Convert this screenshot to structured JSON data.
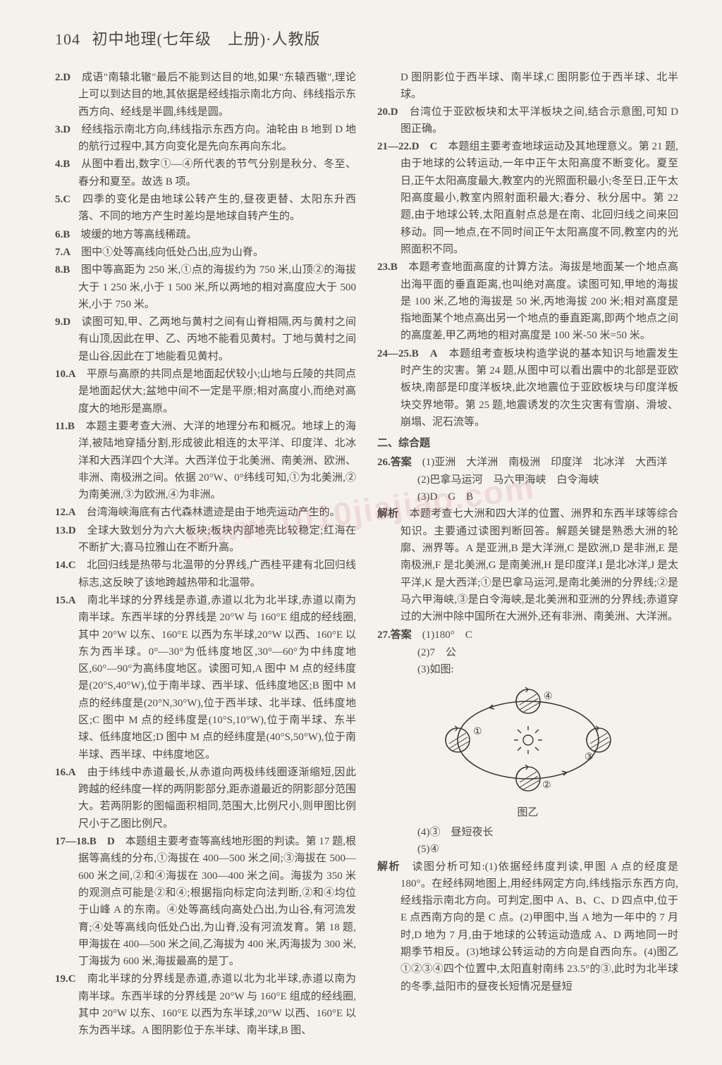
{
  "page_number": "104",
  "header_title": "初中地理(七年级　上册)·人教版",
  "watermark_text": "www.1010jiajiao.com",
  "left_column": {
    "items": [
      {
        "num": "2.D",
        "text": "成语\"南辕北辙\"最后不能到达目的地,如果\"东辕西辙\",理论上可以到达目的地,其依据是经线指示南北方向、纬线指示东西方向、经线是半圆,纬线是圆。"
      },
      {
        "num": "3.D",
        "text": "经线指示南北方向,纬线指示东西方向。油轮由 B 地到 D 地的航行过程中,其方向变化是先向东再向东北。"
      },
      {
        "num": "4.B",
        "text": "从图中看出,数字①—④所代表的节气分别是秋分、冬至、春分和夏至。故选 B 项。"
      },
      {
        "num": "5.C",
        "text": "四季的变化是由地球公转产生的,昼夜更替、太阳东升西落、不同的地方产生时差均是地球自转产生的。"
      },
      {
        "num": "6.B",
        "text": "坡缓的地方等高线稀疏。"
      },
      {
        "num": "7.A",
        "text": "图中①处等高线向低处凸出,应为山脊。"
      },
      {
        "num": "8.B",
        "text": "图中等高距为 250 米,①点的海拔约为 750 米,山顶②的海拔大于 1 250 米,小于 1 500 米,所以两地的相对高度应大于 500 米,小于 750 米。"
      },
      {
        "num": "9.D",
        "text": "读图可知,甲、乙两地与黄村之间有山脊相隔,丙与黄村之间有山顶,因此在甲、乙、丙地不能看见黄村。丁地与黄村之间是山谷,因此在丁地能看见黄村。"
      },
      {
        "num": "10.A",
        "text": "平原与高原的共同点是地面起伏较小;山地与丘陵的共同点是地面起伏大;盆地中间不一定是平原;相对高度小,而绝对高度大的地形是高原。"
      },
      {
        "num": "11.B",
        "text": "本题主要考查大洲、大洋的地理分布和概况。地球上的海洋,被陆地穿插分割,形成彼此相连的太平洋、印度洋、北冰洋和大西洋四个大洋。大西洋位于北美洲、南美洲、欧洲、非洲、南极洲之间。依据 20°W、0°纬线可知,①为北美洲,②为南美洲,③为欧洲,④为非洲。"
      },
      {
        "num": "12.A",
        "text": "台湾海峡海底有古代森林遗迹是由于地壳运动产生的。"
      },
      {
        "num": "13.D",
        "text": "全球大致划分为六大板块;板块内部地壳比较稳定;红海在不断扩大;喜马拉雅山在不断升高。"
      },
      {
        "num": "14.C",
        "text": "北回归线是热带与北温带的分界线,广西桂平建有北回归线标志,这反映了该地跨越热带和北温带。"
      },
      {
        "num": "15.A",
        "text": "南北半球的分界线是赤道,赤道以北为北半球,赤道以南为南半球。东西半球的分界线是 20°W 与 160°E 组成的经线圈,其中 20°W 以东、160°E 以西为东半球,20°W 以西、160°E 以东为西半球。0°—30°为低纬度地区,30°—60°为中纬度地区,60°—90°为高纬度地区。读图可知,A 图中 M 点的经纬度是(20°S,40°W),位于南半球、西半球、低纬度地区;B 图中 M 点的经纬度是(20°N,30°W),位于西半球、北半球、低纬度地区;C 图中 M 点的经纬度是(10°S,10°W),位于南半球、东半球、低纬度地区;D 图中 M 点的经纬度是(40°S,50°W),位于南半球、西半球、中纬度地区。"
      },
      {
        "num": "16.A",
        "text": "由于纬线中赤道最长,从赤道向两极纬线圈逐渐缩短,因此跨越的经纬度一样的两阴影部分,距赤道最近的阴影部分范围大。若两阴影的图幅面积相同,范围大,比例尺小,则甲图比例尺小于乙图比例尺。"
      },
      {
        "num": "17—18.B　D",
        "text": "本题组主要考查等高线地形图的判读。第 17 题,根据等高线的分布,①海拔在 400—500 米之间;③海拔在 500—600 米之间,②和④海拔在 300—400 米之间。海拔为 350 米的观测点可能是②和④;根据指向标定向法判断,②和④均位于山峰 A 的东南。④处等高线向高处凸出,为山谷,有河流发育;④处等高线向低处凸出,为山脊,没有河流发育。第 18 题,甲海拔在 400—500 米之间,乙海拔为 400 米,丙海拔为 300 米,丁海拔为 600 米,海拔最高的是丁。"
      },
      {
        "num": "19.C",
        "text": "南北半球的分界线是赤道,赤道以北为北半球,赤道以南为南半球。东西半球的分界线是 20°W 与 160°E 组成的经线圈,其中 20°W 以东、160°E 以西为东半球,20°W 以西、160°E 以东为西半球。A 图阴影位于东半球、南半球,B 图、"
      }
    ]
  },
  "right_column": {
    "cont_first": "D 图阴影位于西半球、南半球,C 图阴影位于西半球、北半球。",
    "items": [
      {
        "num": "20.D",
        "text": "台湾位于亚欧板块和太平洋板块之间,结合示意图,可知 D 图正确。"
      },
      {
        "num": "21—22.D　C",
        "text": "本题组主要考查地球运动及其地理意义。第 21 题,由于地球的公转运动,一年中正午太阳高度不断变化。夏至日,正午太阳高度最大,教室内的光照面积最小;冬至日,正午太阳高度最小,教室内照射面积最大;春分、秋分居中。第 22 题,由于地球公转,太阳直射点总是在南、北回归线之间来回移动。同一地点,在不同时间正午太阳高度不同,教室内的光照面积不同。"
      },
      {
        "num": "23.B",
        "text": "本题考查地面高度的计算方法。海拔是地面某一个地点高出海平面的垂直距离,也叫绝对高度。读图可知,甲地的海拔是 100 米,乙地的海拔是 50 米,丙地海拔 200 米;相对高度是指地面某个地点高出另一个地点的垂直距离,即两个地点之间的高度差,甲乙两地的相对高度是 100 米-50 米=50 米。"
      },
      {
        "num": "24—25.B　A",
        "text": "本题组考查板块构造学说的基本知识与地震发生时产生的灾害。第 24 题,从图中可以看出震中的北部是亚欧板块,南部是印度洋板块,此次地震位于亚欧板块与印度洋板块交界地带。第 25 题,地震诱发的次生灾害有雪崩、滑坡、崩塌、泥石流等。"
      }
    ],
    "section2_head": "二、综合题",
    "q26_head": "26.答案",
    "q26_1": "(1)亚洲　大洋洲　南极洲　印度洋　北冰洋　大西洋",
    "q26_2": "(2)巴拿马运河　马六甲海峡　白令海峡",
    "q26_3": "(3)D　G　B",
    "q26_analysis_label": "解析",
    "q26_analysis": "本题考查七大洲和四大洋的位置、洲界和东西半球等综合知识。主要通过读图判断回答。解题关键是熟悉大洲的轮廓、洲界等。A 是亚洲,B 是大洋洲,C 是欧洲,D 是非洲,E 是南极洲,F 是北美洲,G 是南美洲,H 是印度洋,I 是北冰洋,J 是太平洋,K 是大西洋;①是巴拿马运河,是南北美洲的分界线;②是马六甲海峡,③是白令海峡,是北美洲和亚洲的分界线;赤道穿过的大洲中除中国所在大洲外,还有非洲、南美洲、大洋洲。",
    "q27_head": "27.答案",
    "q27_1": "(1)180°　C",
    "q27_2": "(2)7　公",
    "q27_3_label": "(3)如图:",
    "q27_4": "(4)③　昼短夜长",
    "q27_5": "(5)④",
    "q27_analysis_label": "解析",
    "q27_analysis": "读图分析可知:(1)依据经纬度判读,甲图 A 点的经度是 180°。在经纬网地图上,用经纬网定方向,纬线指示东西方向,经线指示南北方向。可判定,图中 A、B、C、D 四点中,位于 E 点西南方向的是 C 点。(2)甲图中,当 A 地为一年中的 7 月时,D 地为 7 月,由于地球的公转运动造成 A、D 两地同一时期季节相反。(3)地球公转运动的方向是自西向东。(4)图乙①②③④四个位置中,太阳直射南纬 23.5°的③,此时为北半球的冬季,益阳市的昼夜长短情况是昼短",
    "diagram": {
      "caption": "图乙",
      "labels": [
        "①",
        "②",
        "③",
        "④"
      ],
      "stroke_color": "#3a3a38",
      "fill_color": "none",
      "hatch_color": "#3a3a38",
      "bg": "#f5f2ee"
    }
  }
}
